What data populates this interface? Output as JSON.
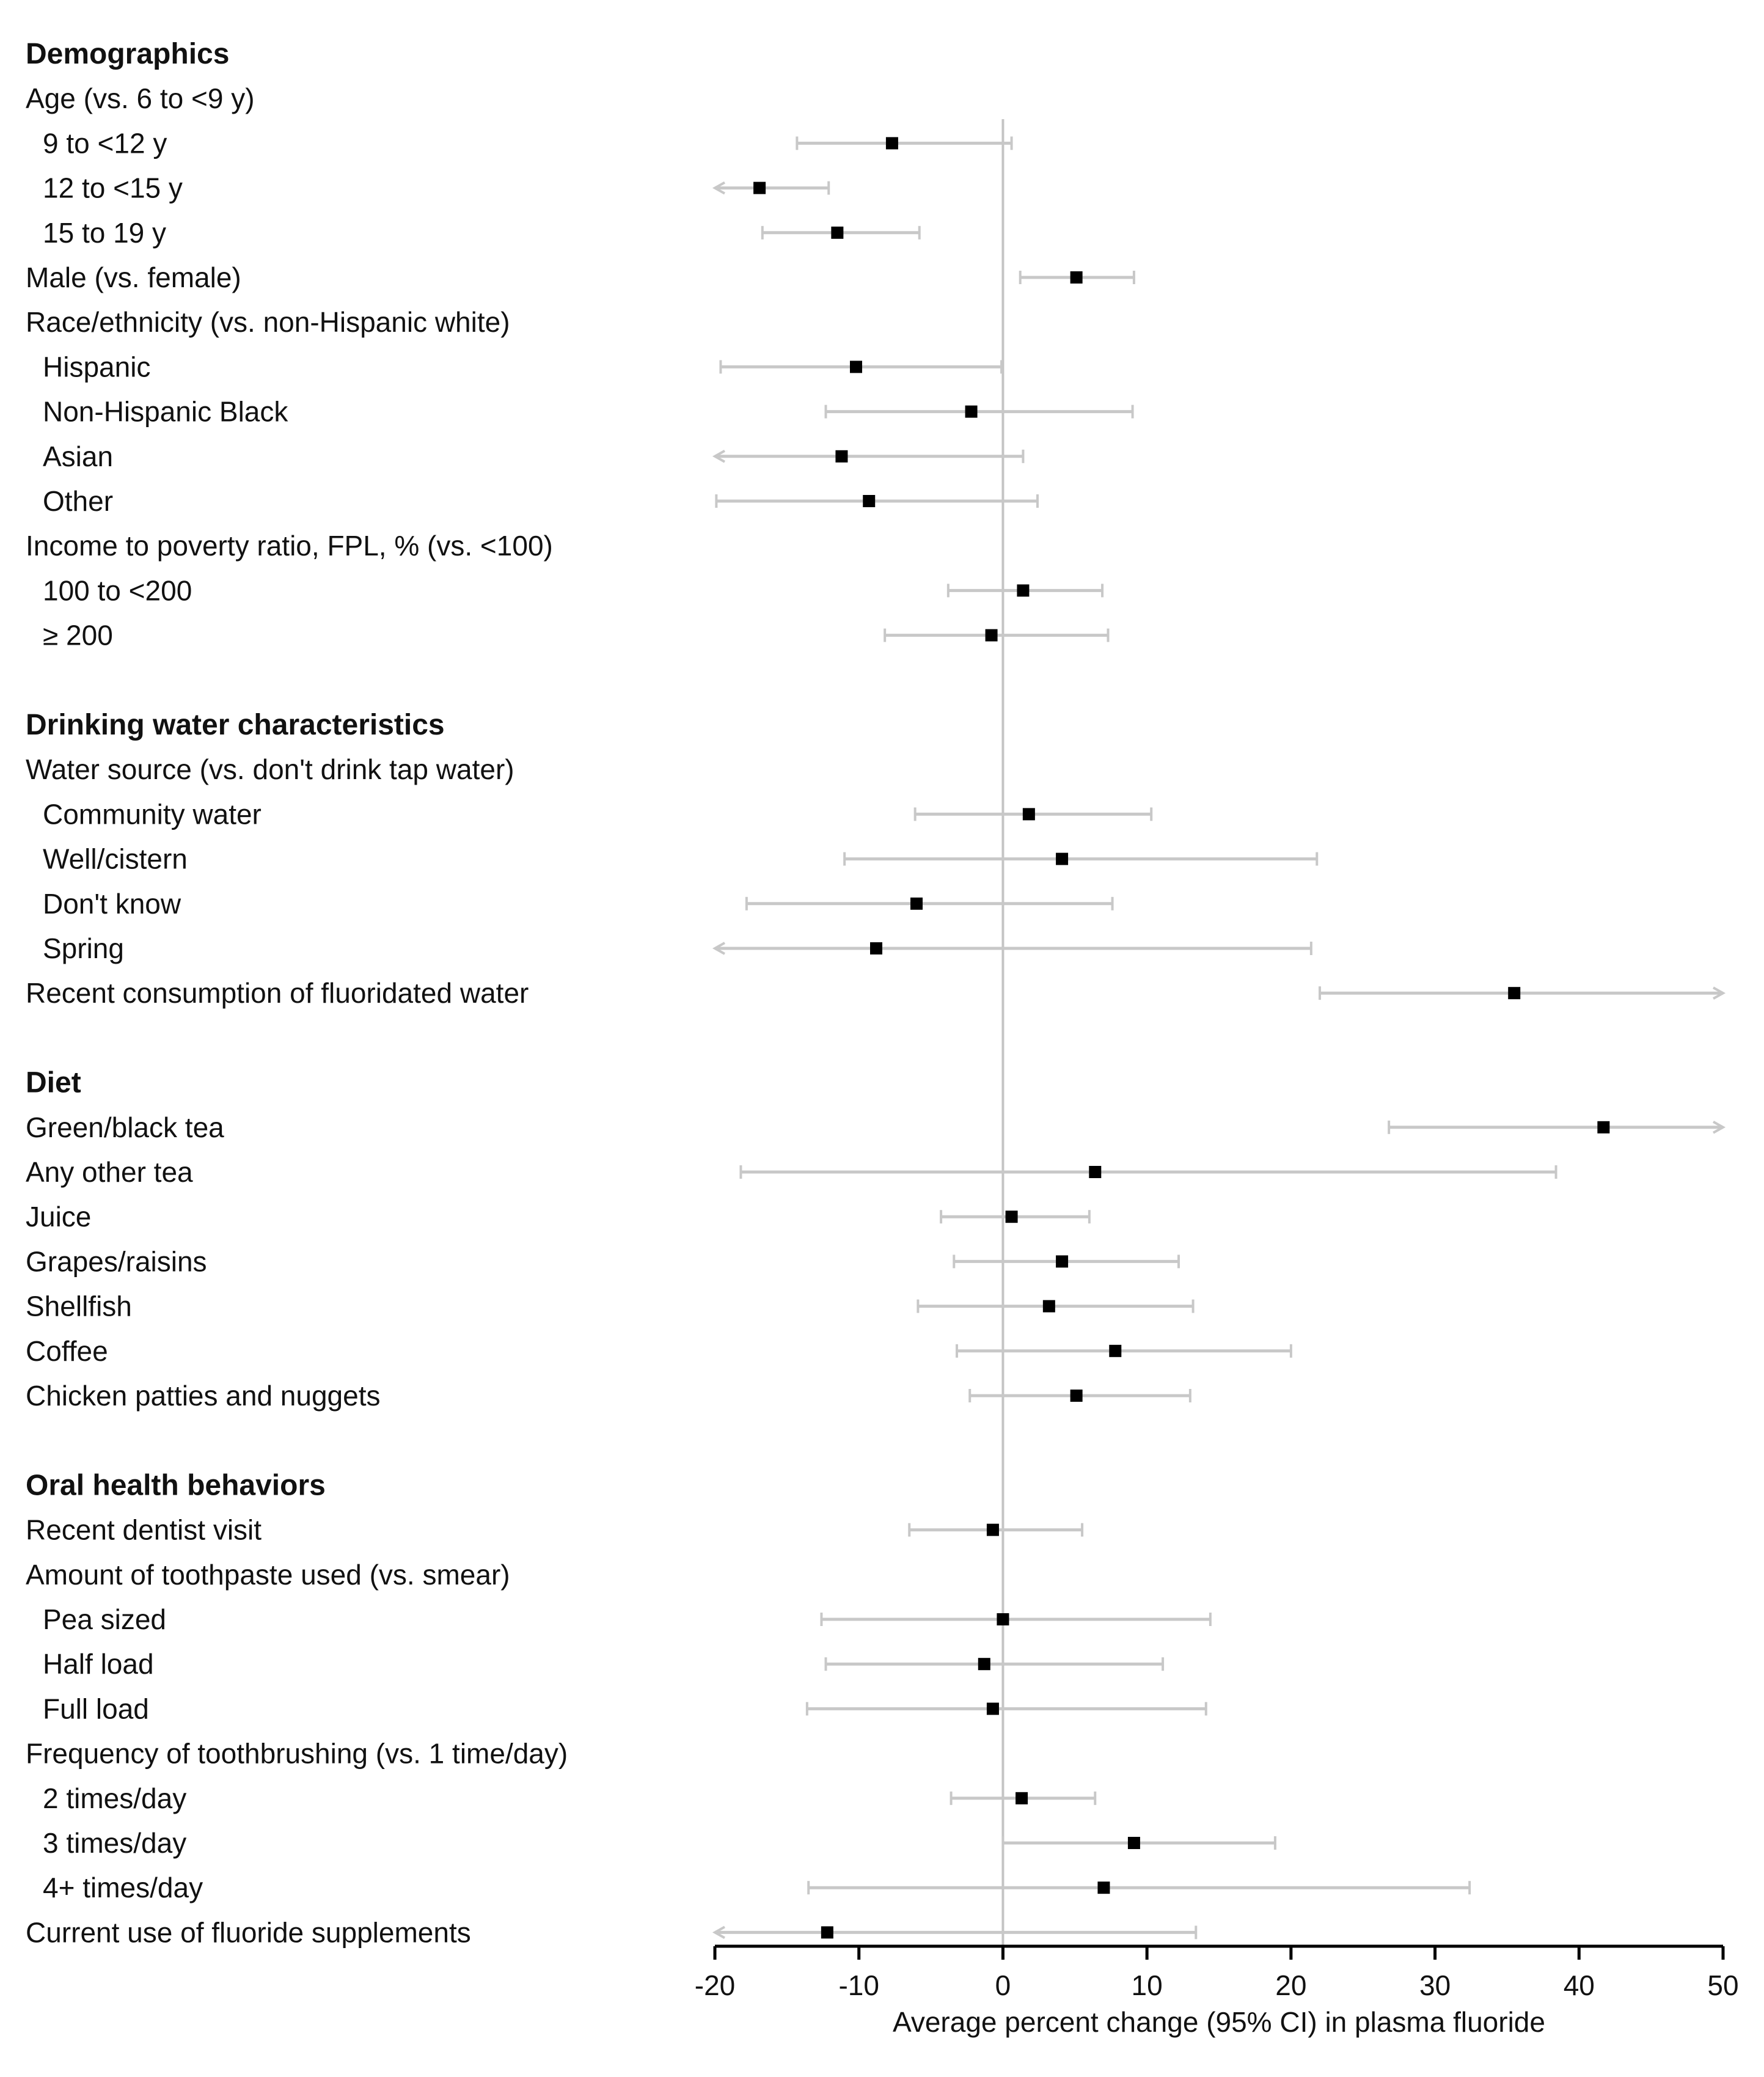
{
  "chart_data": {
    "type": "forest",
    "xlabel": "Average percent change (95% CI) in plasma fluoride",
    "xlim": [
      -20,
      50
    ],
    "xticks": [
      -20,
      -10,
      0,
      10,
      20,
      30,
      40,
      50
    ],
    "xtick_labels": [
      "-20",
      "-10",
      "0",
      "10",
      "20",
      "30",
      "40",
      "50"
    ],
    "reference_line": 0,
    "rows": [
      {
        "label": "Demographics",
        "kind": "section"
      },
      {
        "label": "Age (vs. 6 to <9 y)",
        "kind": "group"
      },
      {
        "label": "9 to <12 y",
        "kind": "item",
        "indent": true,
        "est": -7.7,
        "lo": -14.3,
        "hi": 0.6
      },
      {
        "label": "12 to <15 y",
        "kind": "item",
        "indent": true,
        "est": -16.9,
        "lo": -20,
        "hi": -12.1,
        "lo_arrow": true
      },
      {
        "label": "15 to 19 y",
        "kind": "item",
        "indent": true,
        "est": -11.5,
        "lo": -16.7,
        "hi": -5.8
      },
      {
        "label": "Male (vs. female)",
        "kind": "item",
        "indent": false,
        "est": 5.1,
        "lo": 1.2,
        "hi": 9.1
      },
      {
        "label": "Race/ethnicity (vs. non-Hispanic white)",
        "kind": "group"
      },
      {
        "label": "Hispanic",
        "kind": "item",
        "indent": true,
        "est": -10.2,
        "lo": -19.6,
        "hi": -0.1
      },
      {
        "label": "Non-Hispanic Black",
        "kind": "item",
        "indent": true,
        "est": -2.2,
        "lo": -12.3,
        "hi": 9.0
      },
      {
        "label": "Asian",
        "kind": "item",
        "indent": true,
        "est": -11.2,
        "lo": -20,
        "hi": 1.4,
        "lo_arrow": true
      },
      {
        "label": "Other",
        "kind": "item",
        "indent": true,
        "est": -9.3,
        "lo": -19.9,
        "hi": 2.4
      },
      {
        "label": "Income to poverty ratio, FPL, % (vs. <100)",
        "kind": "group"
      },
      {
        "label": "100 to <200",
        "kind": "item",
        "indent": true,
        "est": 1.4,
        "lo": -3.8,
        "hi": 6.9
      },
      {
        "label": "≥ 200",
        "kind": "item",
        "indent": true,
        "est": -0.8,
        "lo": -8.2,
        "hi": 7.3
      },
      {
        "kind": "spacer"
      },
      {
        "label": "Drinking water characteristics",
        "kind": "section"
      },
      {
        "label": "Water source (vs. don't drink tap water)",
        "kind": "group"
      },
      {
        "label": "Community water",
        "kind": "item",
        "indent": true,
        "est": 1.8,
        "lo": -6.1,
        "hi": 10.3
      },
      {
        "label": "Well/cistern",
        "kind": "item",
        "indent": true,
        "est": 4.1,
        "lo": -11.0,
        "hi": 21.8
      },
      {
        "label": "Don't know",
        "kind": "item",
        "indent": true,
        "est": -6.0,
        "lo": -17.8,
        "hi": 7.6
      },
      {
        "label": "Spring",
        "kind": "item",
        "indent": true,
        "est": -8.8,
        "lo": -20,
        "hi": 21.4,
        "lo_arrow": true
      },
      {
        "label": "Recent consumption of fluoridated water",
        "kind": "item",
        "indent": false,
        "est": 35.5,
        "lo": 22.0,
        "hi": 50,
        "hi_arrow": true
      },
      {
        "kind": "spacer"
      },
      {
        "label": "Diet",
        "kind": "section"
      },
      {
        "label": "Green/black tea",
        "kind": "item",
        "indent": false,
        "est": 41.7,
        "lo": 26.8,
        "hi": 50,
        "hi_arrow": true
      },
      {
        "label": "Any other tea",
        "kind": "item",
        "indent": false,
        "est": 6.4,
        "lo": -18.2,
        "hi": 38.4
      },
      {
        "label": "Juice",
        "kind": "item",
        "indent": false,
        "est": 0.6,
        "lo": -4.3,
        "hi": 6.0
      },
      {
        "label": "Grapes/raisins",
        "kind": "item",
        "indent": false,
        "est": 4.1,
        "lo": -3.4,
        "hi": 12.2
      },
      {
        "label": "Shellfish",
        "kind": "item",
        "indent": false,
        "est": 3.2,
        "lo": -5.9,
        "hi": 13.2
      },
      {
        "label": "Coffee",
        "kind": "item",
        "indent": false,
        "est": 7.8,
        "lo": -3.2,
        "hi": 20.0
      },
      {
        "label": "Chicken patties and nuggets",
        "kind": "item",
        "indent": false,
        "est": 5.1,
        "lo": -2.3,
        "hi": 13.0
      },
      {
        "kind": "spacer"
      },
      {
        "label": "Oral health behaviors",
        "kind": "section"
      },
      {
        "label": "Recent dentist visit",
        "kind": "item",
        "indent": false,
        "est": -0.7,
        "lo": -6.5,
        "hi": 5.5
      },
      {
        "label": "Amount of toothpaste used (vs. smear)",
        "kind": "group"
      },
      {
        "label": "Pea sized",
        "kind": "item",
        "indent": true,
        "est": 0.0,
        "lo": -12.6,
        "hi": 14.4
      },
      {
        "label": "Half load",
        "kind": "item",
        "indent": true,
        "est": -1.3,
        "lo": -12.3,
        "hi": 11.1
      },
      {
        "label": "Full load",
        "kind": "item",
        "indent": true,
        "est": -0.7,
        "lo": -13.6,
        "hi": 14.1
      },
      {
        "label": "Frequency of toothbrushing (vs. 1 time/day)",
        "kind": "group"
      },
      {
        "label": "2 times/day",
        "kind": "item",
        "indent": true,
        "est": 1.3,
        "lo": -3.6,
        "hi": 6.4
      },
      {
        "label": "3 times/day",
        "kind": "item",
        "indent": true,
        "est": 9.1,
        "lo": 0.0,
        "hi": 18.9
      },
      {
        "label": "4+ times/day",
        "kind": "item",
        "indent": true,
        "est": 7.0,
        "lo": -13.5,
        "hi": 32.4
      },
      {
        "label": "Current use of fluoride supplements",
        "kind": "item",
        "indent": false,
        "est": -12.2,
        "lo": -20,
        "hi": 13.4,
        "lo_arrow": true
      }
    ]
  }
}
